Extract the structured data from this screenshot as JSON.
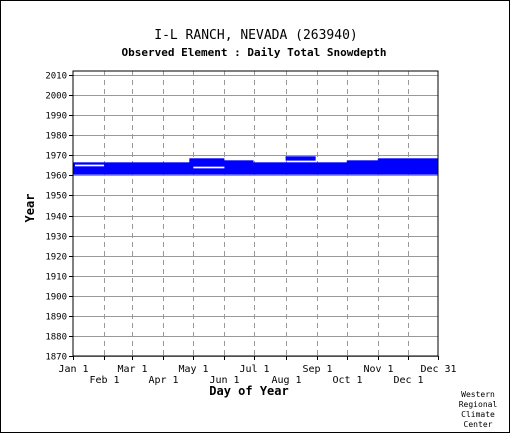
{
  "chart_data": {
    "type": "heatmap",
    "title": "I-L RANCH, NEVADA   (263940)",
    "subtitle": "Observed Element : Daily Total Snowdepth",
    "xlabel": "Day of Year",
    "ylabel": "Year",
    "xlim": [
      1,
      365
    ],
    "ylim": [
      1870,
      2012
    ],
    "y_ticks": [
      1870,
      1880,
      1890,
      1900,
      1910,
      1920,
      1930,
      1940,
      1950,
      1960,
      1970,
      1980,
      1990,
      2000,
      2010
    ],
    "x_ticks_top_row": [
      {
        "label": "Jan 1",
        "day": 1
      },
      {
        "label": "Mar 1",
        "day": 60
      },
      {
        "label": "May 1",
        "day": 121
      },
      {
        "label": "Jul 1",
        "day": 182
      },
      {
        "label": "Sep 1",
        "day": 244
      },
      {
        "label": "Nov 1",
        "day": 305
      },
      {
        "label": "Dec 31",
        "day": 365
      }
    ],
    "x_ticks_bottom_row": [
      {
        "label": "Feb 1",
        "day": 32
      },
      {
        "label": "Apr 1",
        "day": 91
      },
      {
        "label": "Jun 1",
        "day": 152
      },
      {
        "label": "Aug 1",
        "day": 213
      },
      {
        "label": "Oct 1",
        "day": 274
      },
      {
        "label": "Dec 1",
        "day": 335
      }
    ],
    "grid": true,
    "data_color": "#0000ff",
    "coverage": [
      {
        "year": 1961,
        "day_ranges": [
          [
            1,
            365
          ]
        ]
      },
      {
        "year": 1962,
        "day_ranges": [
          [
            1,
            365
          ]
        ]
      },
      {
        "year": 1963,
        "day_ranges": [
          [
            1,
            365
          ]
        ]
      },
      {
        "year": 1964,
        "day_ranges": [
          [
            1,
            121
          ],
          [
            152,
            365
          ]
        ]
      },
      {
        "year": 1965,
        "day_ranges": [
          [
            1,
            3
          ],
          [
            32,
            365
          ]
        ]
      },
      {
        "year": 1966,
        "day_ranges": [
          [
            1,
            365
          ]
        ]
      },
      {
        "year": 1967,
        "day_ranges": [
          [
            117,
            181
          ],
          [
            274,
            365
          ]
        ]
      },
      {
        "year": 1968,
        "day_ranges": [
          [
            117,
            152
          ],
          [
            213,
            243
          ],
          [
            305,
            365
          ]
        ]
      },
      {
        "year": 1969,
        "day_ranges": [
          [
            213,
            243
          ]
        ]
      }
    ],
    "credit": [
      "Western",
      "Regional",
      "Climate",
      "Center"
    ]
  }
}
